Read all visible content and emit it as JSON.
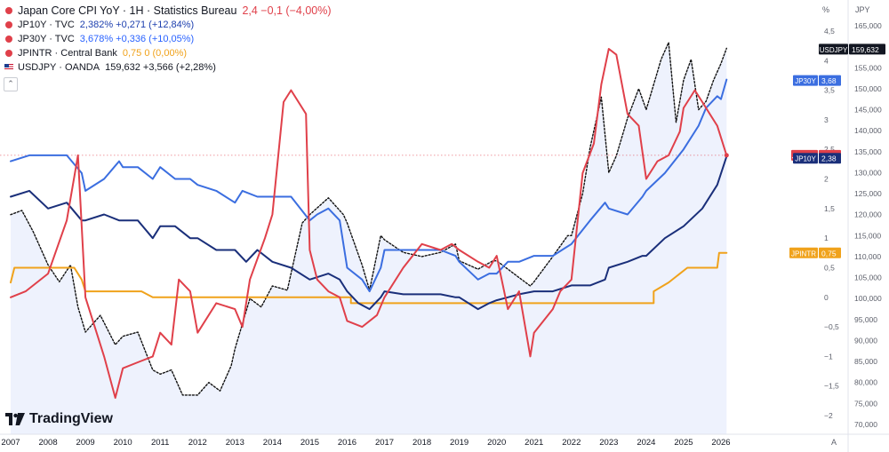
{
  "legend": [
    {
      "icon": "dot",
      "color": "#e0404a",
      "name": "Japan Core CPI YoY · 1H · Statistics Bureau",
      "values": "2,4  −0,1 (−4,00%)",
      "valcolor": "#e0404a"
    },
    {
      "icon": "dot",
      "color": "#e0404a",
      "name": "JP10Y · TVC",
      "values": "2,382%  +0,271 (+12,84%)",
      "valcolor": "#1e40af"
    },
    {
      "icon": "dot",
      "color": "#e0404a",
      "name": "JP30Y · TVC",
      "values": "3,678%  +0,336 (+10,05%)",
      "valcolor": "#2962ff"
    },
    {
      "icon": "dot",
      "color": "#e0404a",
      "name": "JPINTR · Central Bank",
      "values": "0,75  0 (0,00%)",
      "valcolor": "#f0a21b"
    },
    {
      "icon": "flag",
      "color": "#c8102e",
      "name": "USDJPY · OANDA",
      "values": "159,632  +3,566 (+2,28%)",
      "valcolor": "#131722"
    }
  ],
  "collapse_glyph": "⌃",
  "brand": "TradingView",
  "scale_labels": {
    "pct_unit": "%",
    "jpy_unit": "JPY",
    "auto": "A"
  },
  "chart_data": {
    "type": "line",
    "x_ticks": [
      "2007",
      "2008",
      "2009",
      "2010",
      "2011",
      "2012",
      "2013",
      "2014",
      "2015",
      "2016",
      "2017",
      "2018",
      "2019",
      "2020",
      "2021",
      "2022",
      "2023",
      "2024",
      "2025",
      "2026"
    ],
    "pct_axis": {
      "ticks": [
        "4,5",
        "4",
        "3,5",
        "3",
        "2,5",
        "2",
        "1,5",
        "1",
        "0,5",
        "0",
        "−0,5",
        "−1",
        "−1,5",
        "−2"
      ],
      "range": [
        -2,
        4.5
      ]
    },
    "jpy_axis": {
      "ticks": [
        "165,000",
        "160,000",
        "155,000",
        "150,000",
        "145,000",
        "140,000",
        "135,000",
        "130,000",
        "125,000",
        "120,000",
        "115,000",
        "110,000",
        "105,000",
        "100,000",
        "95,000",
        "90,000",
        "85,000",
        "80,000",
        "75,000",
        "70,000"
      ],
      "range": [
        70000,
        165000
      ]
    },
    "series": [
      {
        "name": "JPCCPI",
        "axis": "pct",
        "color": "#e0404a",
        "width": 2,
        "badge": "2,4",
        "points": [
          [
            2007,
            0
          ],
          [
            2007.4,
            0.1
          ],
          [
            2008,
            0.4
          ],
          [
            2008.5,
            1.3
          ],
          [
            2008.8,
            2.4
          ],
          [
            2009,
            0
          ],
          [
            2009.5,
            -1
          ],
          [
            2009.8,
            -1.7
          ],
          [
            2010,
            -1.2
          ],
          [
            2010.4,
            -1.1
          ],
          [
            2010.8,
            -1.0
          ],
          [
            2011,
            -0.6
          ],
          [
            2011.3,
            -0.8
          ],
          [
            2011.5,
            0.3
          ],
          [
            2011.8,
            0.1
          ],
          [
            2012,
            -0.6
          ],
          [
            2012.5,
            -0.1
          ],
          [
            2013,
            -0.2
          ],
          [
            2013.2,
            -0.5
          ],
          [
            2013.4,
            0.3
          ],
          [
            2013.8,
            1.0
          ],
          [
            2014,
            1.4
          ],
          [
            2014.3,
            3.3
          ],
          [
            2014.5,
            3.5
          ],
          [
            2014.9,
            3.1
          ],
          [
            2015,
            0.8
          ],
          [
            2015.2,
            0.3
          ],
          [
            2015.5,
            0.1
          ],
          [
            2015.8,
            0
          ],
          [
            2016,
            -0.4
          ],
          [
            2016.4,
            -0.5
          ],
          [
            2016.8,
            -0.3
          ],
          [
            2017,
            0
          ],
          [
            2017.5,
            0.5
          ],
          [
            2018,
            0.9
          ],
          [
            2018.5,
            0.8
          ],
          [
            2018.8,
            0.9
          ],
          [
            2019,
            0.8
          ],
          [
            2019.5,
            0.6
          ],
          [
            2019.8,
            0.5
          ],
          [
            2020,
            0.7
          ],
          [
            2020.3,
            -0.2
          ],
          [
            2020.6,
            0.1
          ],
          [
            2020.9,
            -1.0
          ],
          [
            2021,
            -0.6
          ],
          [
            2021.5,
            -0.2
          ],
          [
            2021.7,
            0.1
          ],
          [
            2022,
            0.3
          ],
          [
            2022.3,
            2.1
          ],
          [
            2022.6,
            2.6
          ],
          [
            2022.8,
            3.6
          ],
          [
            2023,
            4.2
          ],
          [
            2023.2,
            4.1
          ],
          [
            2023.5,
            3.1
          ],
          [
            2023.8,
            2.9
          ],
          [
            2024,
            2.0
          ],
          [
            2024.3,
            2.3
          ],
          [
            2024.6,
            2.4
          ],
          [
            2024.9,
            2.8
          ],
          [
            2025,
            3.2
          ],
          [
            2025.3,
            3.5
          ],
          [
            2025.5,
            3.3
          ],
          [
            2025.7,
            3.1
          ],
          [
            2025.9,
            2.9
          ],
          [
            2026.15,
            2.4
          ]
        ]
      },
      {
        "name": "JP10Y",
        "axis": "pct",
        "color": "#1a2f7a",
        "width": 2,
        "badge": "2,38",
        "points": [
          [
            2007,
            1.7
          ],
          [
            2007.5,
            1.8
          ],
          [
            2008,
            1.5
          ],
          [
            2008.5,
            1.6
          ],
          [
            2008.9,
            1.3
          ],
          [
            2009,
            1.3
          ],
          [
            2009.5,
            1.4
          ],
          [
            2009.9,
            1.3
          ],
          [
            2010,
            1.3
          ],
          [
            2010.4,
            1.3
          ],
          [
            2010.8,
            1.0
          ],
          [
            2011,
            1.2
          ],
          [
            2011.4,
            1.2
          ],
          [
            2011.8,
            1.0
          ],
          [
            2012,
            1.0
          ],
          [
            2012.5,
            0.8
          ],
          [
            2013,
            0.8
          ],
          [
            2013.3,
            0.6
          ],
          [
            2013.6,
            0.8
          ],
          [
            2014,
            0.6
          ],
          [
            2014.5,
            0.5
          ],
          [
            2015,
            0.3
          ],
          [
            2015.5,
            0.4
          ],
          [
            2015.8,
            0.3
          ],
          [
            2016,
            0.1
          ],
          [
            2016.3,
            -0.1
          ],
          [
            2016.6,
            -0.2
          ],
          [
            2016.9,
            0
          ],
          [
            2017,
            0.1
          ],
          [
            2017.5,
            0.05
          ],
          [
            2018,
            0.05
          ],
          [
            2018.5,
            0.05
          ],
          [
            2018.9,
            0.0
          ],
          [
            2019,
            0
          ],
          [
            2019.5,
            -0.2
          ],
          [
            2019.8,
            -0.1
          ],
          [
            2020,
            -0.05
          ],
          [
            2020.3,
            0
          ],
          [
            2020.6,
            0.05
          ],
          [
            2021,
            0.1
          ],
          [
            2021.5,
            0.1
          ],
          [
            2022,
            0.2
          ],
          [
            2022.5,
            0.2
          ],
          [
            2022.9,
            0.3
          ],
          [
            2023,
            0.5
          ],
          [
            2023.5,
            0.6
          ],
          [
            2023.9,
            0.7
          ],
          [
            2024,
            0.7
          ],
          [
            2024.5,
            1.0
          ],
          [
            2025,
            1.2
          ],
          [
            2025.5,
            1.5
          ],
          [
            2025.9,
            1.9
          ],
          [
            2026.15,
            2.38
          ]
        ]
      },
      {
        "name": "JP30Y",
        "axis": "pct",
        "color": "#3b6ee0",
        "width": 2,
        "badge": "3,68",
        "points": [
          [
            2007,
            2.3
          ],
          [
            2007.5,
            2.4
          ],
          [
            2008,
            2.4
          ],
          [
            2008.5,
            2.4
          ],
          [
            2008.9,
            2.1
          ],
          [
            2009,
            1.8
          ],
          [
            2009.5,
            2.0
          ],
          [
            2009.9,
            2.3
          ],
          [
            2010,
            2.2
          ],
          [
            2010.4,
            2.2
          ],
          [
            2010.8,
            2.0
          ],
          [
            2011,
            2.2
          ],
          [
            2011.4,
            2.0
          ],
          [
            2011.8,
            2.0
          ],
          [
            2012,
            1.9
          ],
          [
            2012.5,
            1.8
          ],
          [
            2013,
            1.6
          ],
          [
            2013.2,
            1.8
          ],
          [
            2013.6,
            1.7
          ],
          [
            2014,
            1.7
          ],
          [
            2014.5,
            1.7
          ],
          [
            2015,
            1.3
          ],
          [
            2015.2,
            1.4
          ],
          [
            2015.5,
            1.5
          ],
          [
            2015.8,
            1.3
          ],
          [
            2016,
            0.5
          ],
          [
            2016.4,
            0.3
          ],
          [
            2016.6,
            0.1
          ],
          [
            2016.9,
            0.5
          ],
          [
            2017,
            0.8
          ],
          [
            2017.5,
            0.8
          ],
          [
            2018,
            0.8
          ],
          [
            2018.5,
            0.8
          ],
          [
            2018.9,
            0.7
          ],
          [
            2019,
            0.6
          ],
          [
            2019.5,
            0.3
          ],
          [
            2019.8,
            0.4
          ],
          [
            2020,
            0.4
          ],
          [
            2020.3,
            0.6
          ],
          [
            2020.6,
            0.6
          ],
          [
            2021,
            0.7
          ],
          [
            2021.5,
            0.7
          ],
          [
            2022,
            0.9
          ],
          [
            2022.5,
            1.3
          ],
          [
            2022.9,
            1.6
          ],
          [
            2023,
            1.5
          ],
          [
            2023.5,
            1.4
          ],
          [
            2023.9,
            1.7
          ],
          [
            2024,
            1.8
          ],
          [
            2024.5,
            2.1
          ],
          [
            2025,
            2.5
          ],
          [
            2025.4,
            2.9
          ],
          [
            2025.6,
            3.2
          ],
          [
            2025.9,
            3.4
          ],
          [
            2026,
            3.35
          ],
          [
            2026.15,
            3.68
          ]
        ]
      },
      {
        "name": "JPINTR",
        "axis": "pct",
        "color": "#f0a21b",
        "width": 2,
        "badge": "0,75",
        "points": [
          [
            2007,
            0.25
          ],
          [
            2007.1,
            0.5
          ],
          [
            2008.7,
            0.5
          ],
          [
            2008.9,
            0.3
          ],
          [
            2009,
            0.1
          ],
          [
            2010.5,
            0.1
          ],
          [
            2010.8,
            0.0
          ],
          [
            2016.1,
            0.0
          ],
          [
            2016.1,
            -0.1
          ],
          [
            2024.2,
            -0.1
          ],
          [
            2024.2,
            0.1
          ],
          [
            2024.6,
            0.25
          ],
          [
            2025.1,
            0.5
          ],
          [
            2025.9,
            0.5
          ],
          [
            2025.95,
            0.75
          ],
          [
            2026.15,
            0.75
          ]
        ]
      },
      {
        "name": "USDJPY",
        "axis": "jpy",
        "color": "#111111",
        "width": 1.4,
        "dashed": true,
        "badge": "159,632",
        "points": [
          [
            2007,
            120
          ],
          [
            2007.3,
            121
          ],
          [
            2007.6,
            116
          ],
          [
            2008,
            108
          ],
          [
            2008.3,
            104
          ],
          [
            2008.6,
            108
          ],
          [
            2008.8,
            98
          ],
          [
            2009,
            92
          ],
          [
            2009.4,
            96
          ],
          [
            2009.8,
            89
          ],
          [
            2010,
            91
          ],
          [
            2010.4,
            92
          ],
          [
            2010.8,
            83
          ],
          [
            2011,
            82
          ],
          [
            2011.3,
            83
          ],
          [
            2011.6,
            77
          ],
          [
            2012,
            77
          ],
          [
            2012.3,
            80
          ],
          [
            2012.6,
            78
          ],
          [
            2012.9,
            84
          ],
          [
            2013,
            88
          ],
          [
            2013.4,
            100
          ],
          [
            2013.7,
            98
          ],
          [
            2014,
            103
          ],
          [
            2014.4,
            102
          ],
          [
            2014.8,
            118
          ],
          [
            2015,
            120
          ],
          [
            2015.5,
            124
          ],
          [
            2015.9,
            120
          ],
          [
            2016,
            118
          ],
          [
            2016.4,
            108
          ],
          [
            2016.6,
            102
          ],
          [
            2016.9,
            115
          ],
          [
            2017,
            114
          ],
          [
            2017.5,
            111
          ],
          [
            2018,
            110
          ],
          [
            2018.5,
            111
          ],
          [
            2018.9,
            113
          ],
          [
            2019,
            109
          ],
          [
            2019.5,
            107
          ],
          [
            2019.9,
            109
          ],
          [
            2020,
            109
          ],
          [
            2020.3,
            107
          ],
          [
            2020.6,
            105
          ],
          [
            2020.9,
            103
          ],
          [
            2021,
            104
          ],
          [
            2021.5,
            110
          ],
          [
            2021.9,
            115
          ],
          [
            2022,
            115
          ],
          [
            2022.3,
            125
          ],
          [
            2022.5,
            136
          ],
          [
            2022.8,
            148
          ],
          [
            2023,
            130
          ],
          [
            2023.2,
            134
          ],
          [
            2023.5,
            143
          ],
          [
            2023.8,
            150
          ],
          [
            2024,
            145
          ],
          [
            2024.4,
            157
          ],
          [
            2024.6,
            161
          ],
          [
            2024.8,
            142
          ],
          [
            2025,
            152
          ],
          [
            2025.2,
            157
          ],
          [
            2025.4,
            145
          ],
          [
            2025.6,
            147
          ],
          [
            2025.8,
            152
          ],
          [
            2026,
            156
          ],
          [
            2026.15,
            159.632
          ]
        ]
      }
    ]
  }
}
